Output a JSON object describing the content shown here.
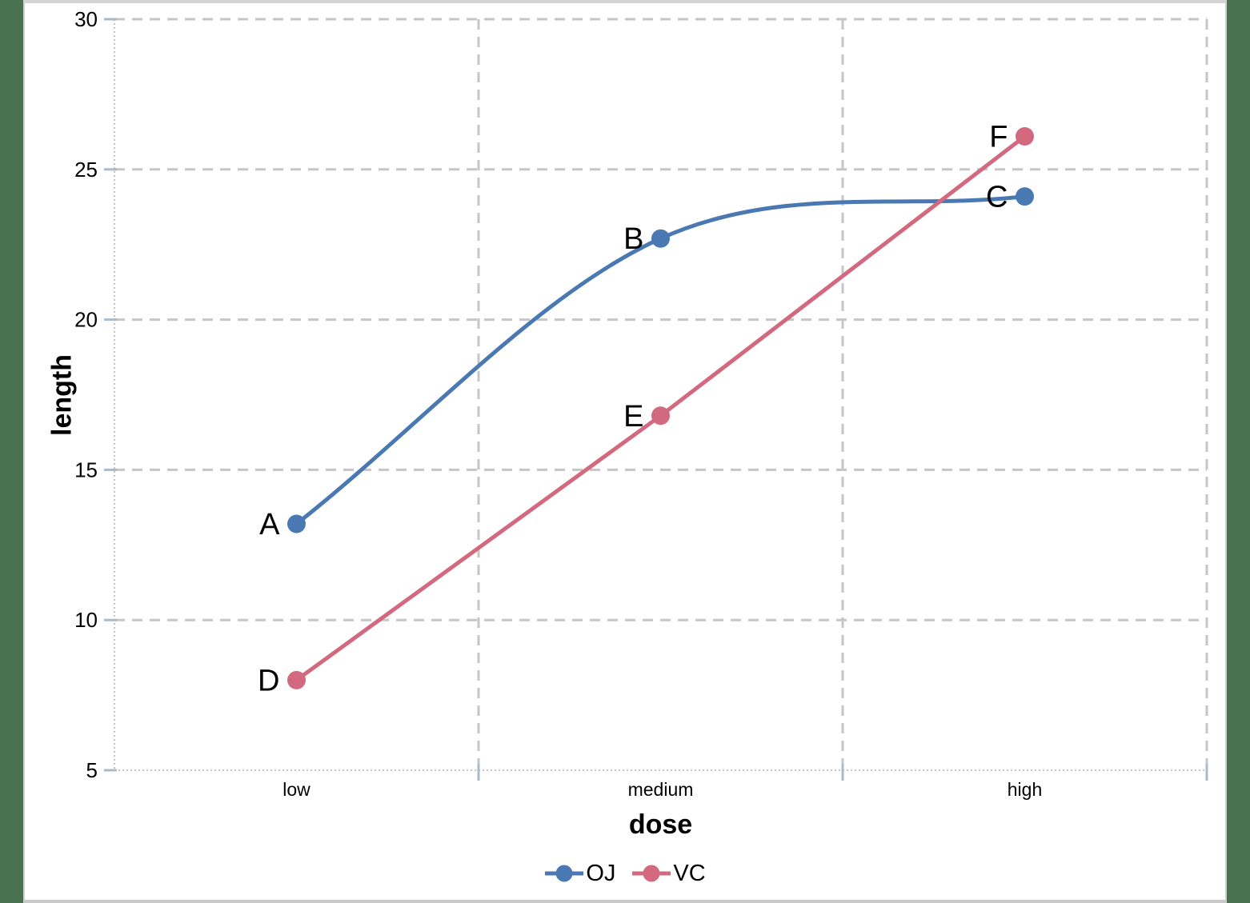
{
  "page": {
    "background_color": "#487251",
    "panel_color": "#ffffff",
    "frame_border_color": "#cfcfcf",
    "top_bar_color": "#d5d5d5",
    "bottom_bar_color": "#c9c9c9"
  },
  "chart_data": {
    "type": "line",
    "title": "",
    "xlabel": "dose",
    "ylabel": "length",
    "x_categories": [
      "low",
      "medium",
      "high"
    ],
    "yticks": [
      5,
      10,
      15,
      20,
      25,
      30
    ],
    "ylim": [
      5,
      30
    ],
    "grid": {
      "horizontal": "dashed gray lines at each y tick",
      "vertical": "dashed gray lines at category midpoints and right plot edge",
      "axes": "dotted light-gray left and bottom axis lines"
    },
    "legend": {
      "position": "bottom-center"
    },
    "series": [
      {
        "name": "OJ",
        "color": "#4A78B2",
        "line_style": "smooth",
        "values": [
          13.2,
          22.7,
          24.1
        ],
        "point_labels": [
          "A",
          "B",
          "C"
        ]
      },
      {
        "name": "VC",
        "color": "#D2697F",
        "line_style": "straight",
        "values": [
          8.0,
          16.8,
          26.1
        ],
        "point_labels": [
          "D",
          "E",
          "F"
        ]
      }
    ],
    "colors": {
      "gridline": "#c6c6c6",
      "axis_line": "#c4c4c4",
      "tick": "#a9bac9",
      "text": "#000000"
    }
  }
}
